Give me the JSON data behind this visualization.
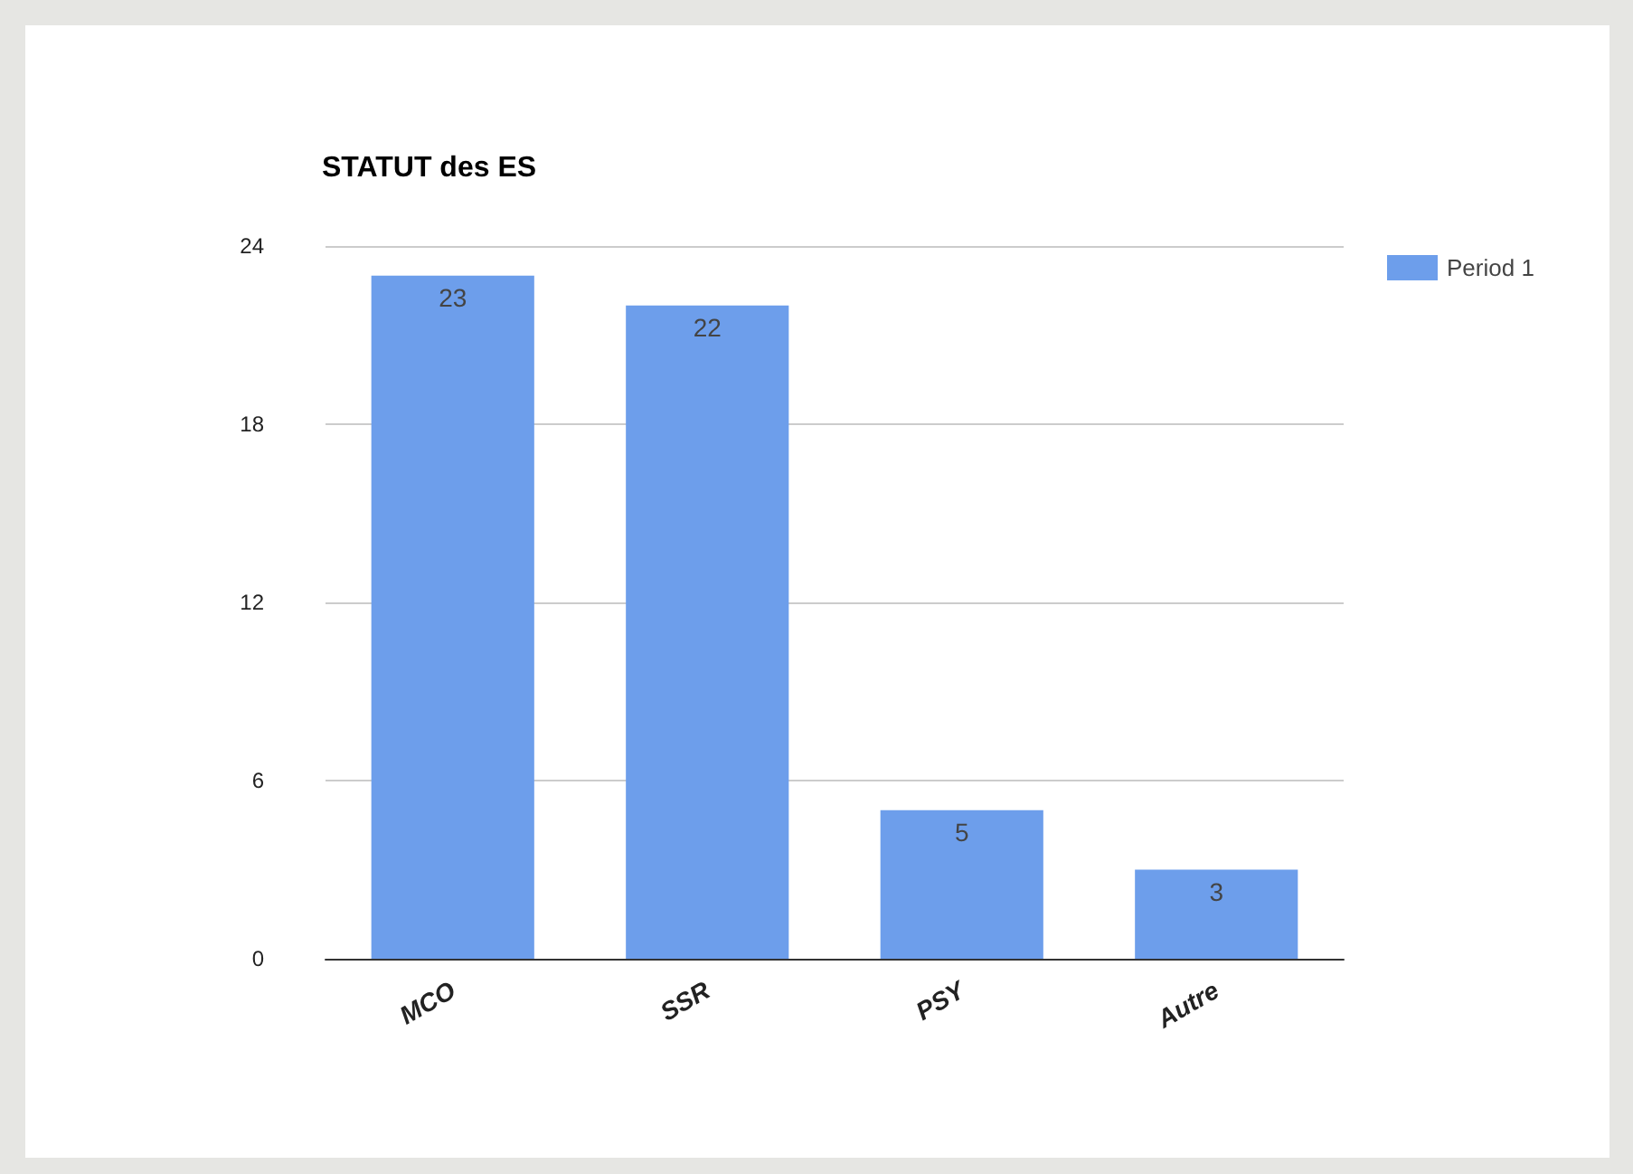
{
  "chart_data": {
    "type": "bar",
    "title": "STATUT des ES",
    "categories": [
      "MCO",
      "SSR",
      "PSY",
      "Autre"
    ],
    "series": [
      {
        "name": "Period 1",
        "color": "#6d9eeb",
        "values": [
          23,
          22,
          5,
          3
        ]
      }
    ],
    "ylim": [
      0,
      24
    ],
    "yticks": [
      0,
      6,
      12,
      18,
      24
    ],
    "grid": "y",
    "legend": "top right",
    "data_labels": true
  }
}
